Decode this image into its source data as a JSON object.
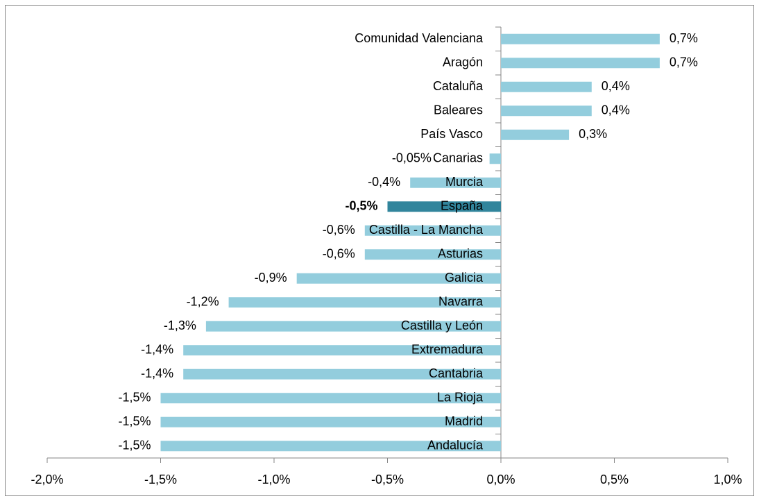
{
  "chart_data": {
    "type": "bar",
    "orientation": "horizontal",
    "categories": [
      "Comunidad Valenciana",
      "Aragón",
      "Cataluña",
      "Baleares",
      "País Vasco",
      "Canarias",
      "Murcia",
      "España",
      "Castilla - La Mancha",
      "Asturias",
      "Galicia",
      "Navarra",
      "Castilla y León",
      "Extremadura",
      "Cantabria",
      "La Rioja",
      "Madrid",
      "Andalucía"
    ],
    "values": [
      0.7,
      0.7,
      0.4,
      0.4,
      0.3,
      -0.05,
      -0.4,
      -0.5,
      -0.6,
      -0.6,
      -0.9,
      -1.2,
      -1.3,
      -1.4,
      -1.4,
      -1.5,
      -1.5,
      -1.5
    ],
    "value_labels": [
      "0,7%",
      "0,7%",
      "0,4%",
      "0,4%",
      "0,3%",
      "-0,05%",
      "-0,4%",
      "-0,5%",
      "-0,6%",
      "-0,6%",
      "-0,9%",
      "-1,2%",
      "-1,3%",
      "-1,4%",
      "-1,4%",
      "-1,5%",
      "-1,5%",
      "-1,5%"
    ],
    "color": "#93cddd",
    "highlight": "España",
    "highlight_color": "#31859c",
    "xlim": [
      -2,
      1
    ],
    "xticks": [
      {
        "value": -2,
        "label": "-2,0%"
      },
      {
        "value": -1.5,
        "label": "-1,5%"
      },
      {
        "value": -1,
        "label": "-1,0%"
      },
      {
        "value": -0.5,
        "label": "-0,5%"
      },
      {
        "value": 0,
        "label": "0,0%"
      },
      {
        "value": 0.5,
        "label": "0,5%"
      },
      {
        "value": 1,
        "label": "1,0%"
      }
    ],
    "grid": false
  }
}
